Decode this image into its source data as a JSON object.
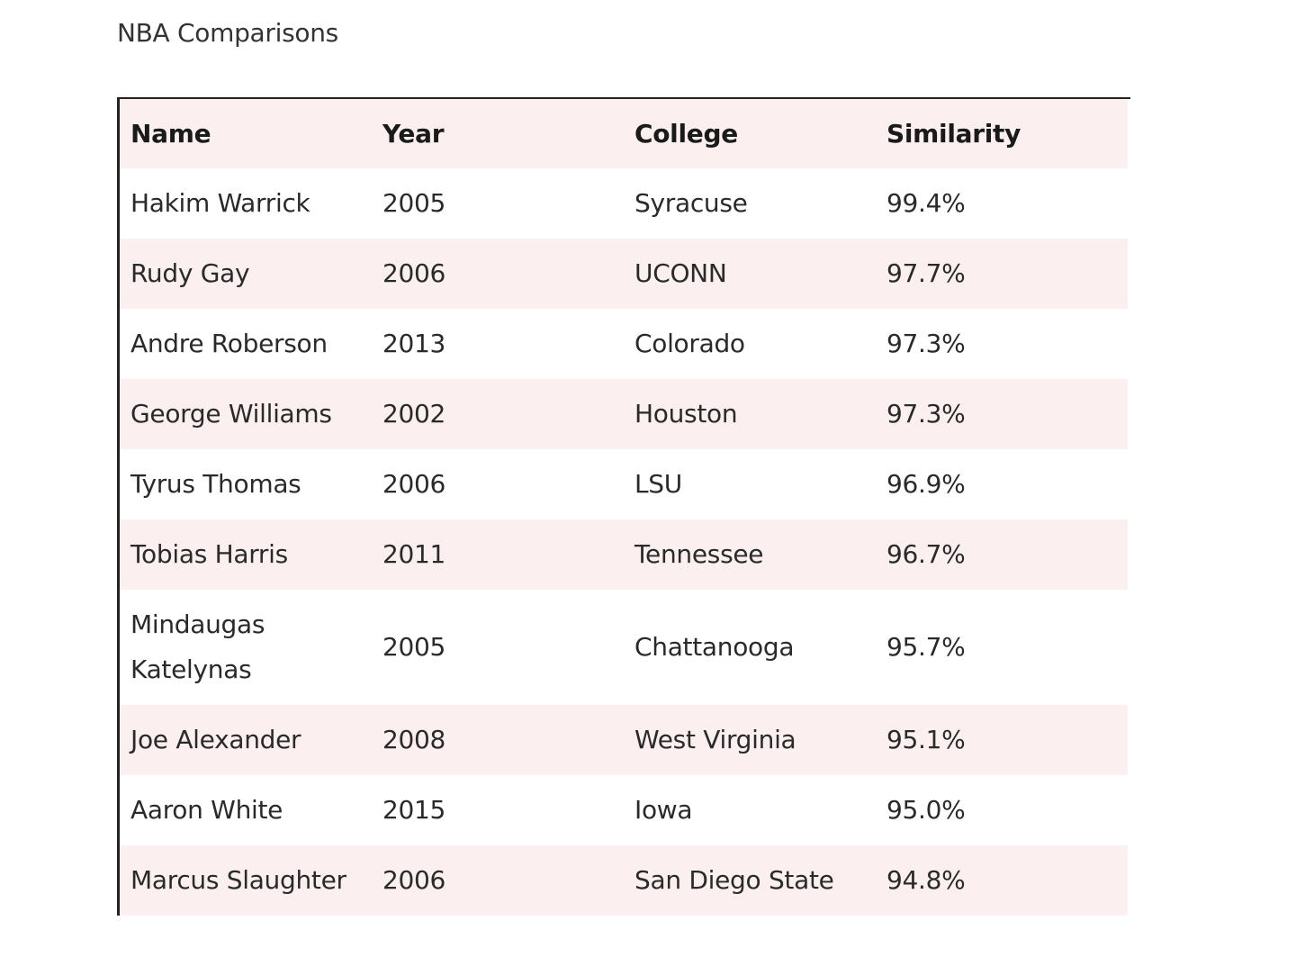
{
  "caption": "NBA Comparisons",
  "table": {
    "headers": [
      "Name",
      "Year",
      "College",
      "Similarity"
    ],
    "rows": [
      [
        "Hakim Warrick",
        "2005",
        "Syracuse",
        "99.4%"
      ],
      [
        "Rudy Gay",
        "2006",
        "UCONN",
        "97.7%"
      ],
      [
        "Andre Roberson",
        "2013",
        "Colorado",
        "97.3%"
      ],
      [
        "George Williams",
        "2002",
        "Houston",
        "97.3%"
      ],
      [
        "Tyrus Thomas",
        "2006",
        "LSU",
        "96.9%"
      ],
      [
        "Tobias Harris",
        "2011",
        "Tennessee",
        "96.7%"
      ],
      [
        "Mindaugas Katelynas",
        "2005",
        "Chattanooga",
        "95.7%"
      ],
      [
        "Joe Alexander",
        "2008",
        "West Virginia",
        "95.1%"
      ],
      [
        "Aaron White",
        "2015",
        "Iowa",
        "95.0%"
      ],
      [
        "Marcus Slaughter",
        "2006",
        "San Diego State",
        "94.8%"
      ]
    ]
  },
  "colors": {
    "header_bg": "#fcefef",
    "stripe_bg": "#fcefef",
    "border": "#222222"
  }
}
